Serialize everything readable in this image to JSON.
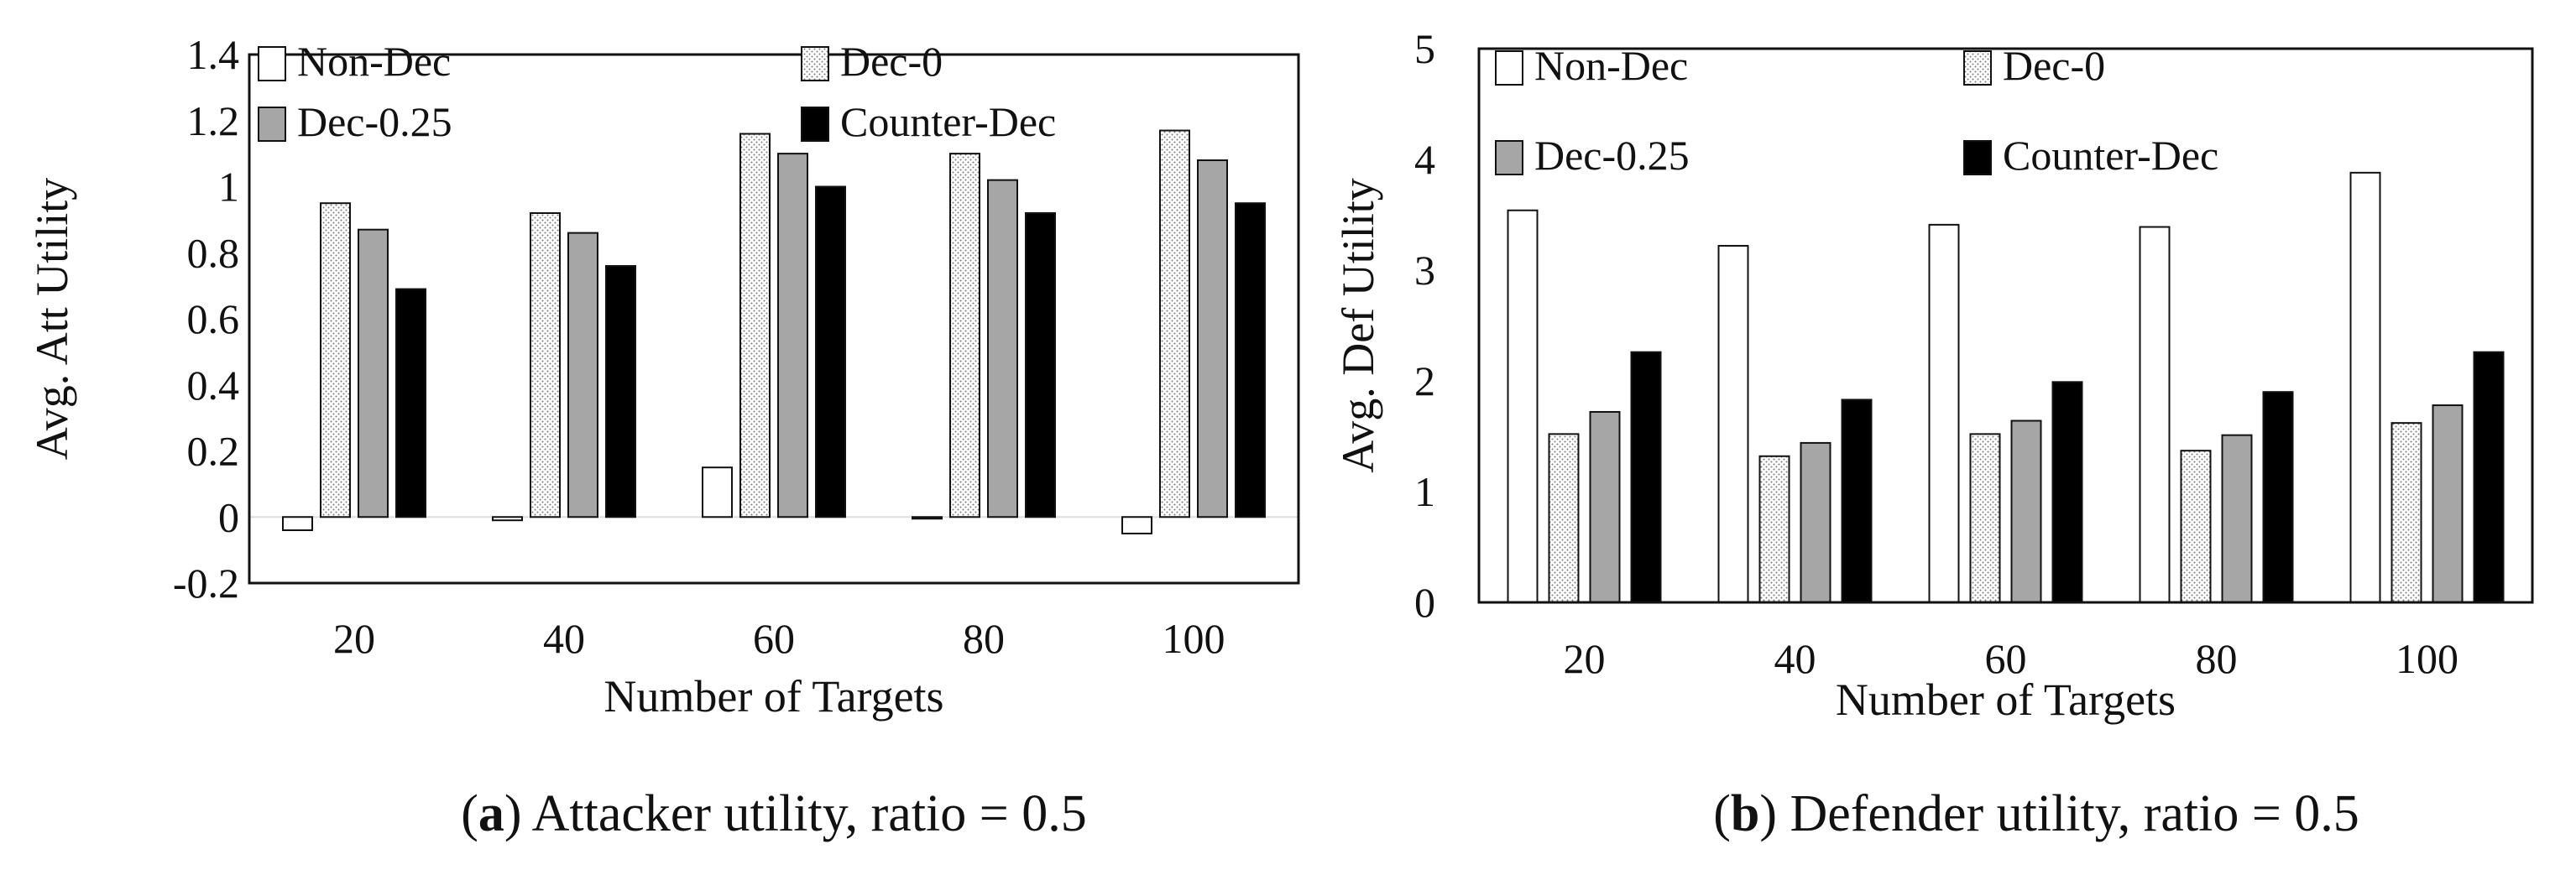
{
  "colors": {
    "Non-Dec": "#ffffff",
    "Dec-0": "dotted",
    "Dec-0.25": "#a6a6a6",
    "Counter-Dec": "#000000",
    "frame": "#111111"
  },
  "chart_data": [
    {
      "type": "bar",
      "ylabel": "Avg. Att Utility",
      "xlabel": "Number of Targets",
      "ylim": [
        -0.2,
        1.4
      ],
      "yticks": [
        -0.2,
        0,
        0.2,
        0.4,
        0.6,
        0.8,
        1,
        1.2,
        1.4
      ],
      "ytick_labels": [
        "-0.2",
        "0",
        "0.2",
        "0.4",
        "0.6",
        "0.8",
        "1",
        "1.2",
        "1.4"
      ],
      "categories": [
        "20",
        "40",
        "60",
        "80",
        "100"
      ],
      "series": [
        {
          "name": "Non-Dec",
          "values": [
            -0.04,
            -0.01,
            0.15,
            -0.005,
            -0.05
          ]
        },
        {
          "name": "Dec-0",
          "values": [
            0.95,
            0.92,
            1.16,
            1.1,
            1.17
          ]
        },
        {
          "name": "Dec-0.25",
          "values": [
            0.87,
            0.86,
            1.1,
            1.02,
            1.08
          ]
        },
        {
          "name": "Counter-Dec",
          "values": [
            0.69,
            0.76,
            1.0,
            0.92,
            0.95
          ]
        }
      ],
      "legend": [
        "Non-Dec",
        "Dec-0",
        "Dec-0.25",
        "Counter-Dec"
      ],
      "legend_position": "top",
      "caption_letter": "a",
      "caption_text": "Attacker utility, ratio = 0.5"
    },
    {
      "type": "bar",
      "ylabel": "Avg. Def Utility",
      "xlabel": "Number of Targets",
      "ylim": [
        0,
        5
      ],
      "yticks": [
        0,
        1,
        2,
        3,
        4,
        5
      ],
      "ytick_labels": [
        "0",
        "1",
        "2",
        "3",
        "4",
        "5"
      ],
      "categories": [
        "20",
        "40",
        "60",
        "80",
        "100"
      ],
      "series": [
        {
          "name": "Non-Dec",
          "values": [
            3.54,
            3.22,
            3.41,
            3.39,
            3.88
          ]
        },
        {
          "name": "Dec-0",
          "values": [
            1.52,
            1.32,
            1.52,
            1.37,
            1.62
          ]
        },
        {
          "name": "Dec-0.25",
          "values": [
            1.72,
            1.44,
            1.64,
            1.51,
            1.78
          ]
        },
        {
          "name": "Counter-Dec",
          "values": [
            2.26,
            1.83,
            1.99,
            1.9,
            2.26
          ]
        }
      ],
      "legend": [
        "Non-Dec",
        "Dec-0",
        "Dec-0.25",
        "Counter-Dec"
      ],
      "legend_position": "top",
      "caption_letter": "b",
      "caption_text": "Defender utility, ratio = 0.5"
    }
  ]
}
